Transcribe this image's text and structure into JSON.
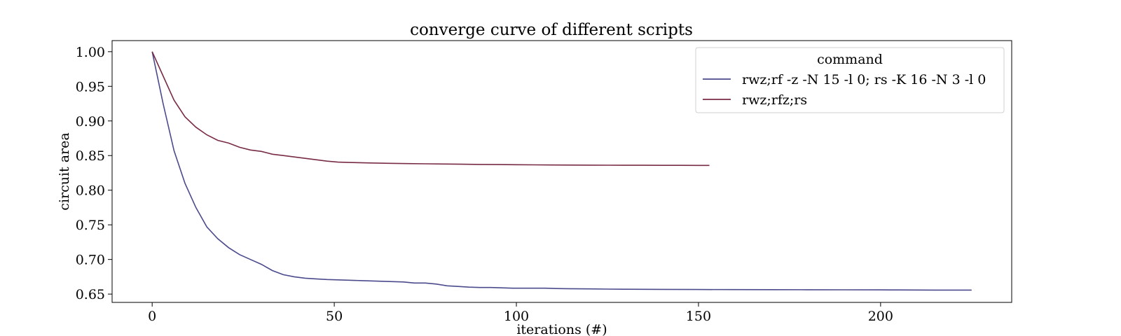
{
  "chart_data": {
    "type": "line",
    "title": "converge curve of different scripts",
    "xlabel": "iterations (#)",
    "ylabel": "circuit area",
    "xlim": [
      -11,
      236
    ],
    "ylim": [
      0.638,
      1.016
    ],
    "xticks": [
      0,
      50,
      100,
      150,
      200
    ],
    "xtick_labels": [
      "0",
      "50",
      "100",
      "150",
      "200"
    ],
    "yticks": [
      0.65,
      0.7,
      0.75,
      0.8,
      0.85,
      0.9,
      0.95,
      1.0
    ],
    "ytick_labels": [
      "0.65",
      "0.70",
      "0.75",
      "0.80",
      "0.85",
      "0.90",
      "0.95",
      "1.00"
    ],
    "grid": false,
    "legend": {
      "title": "command",
      "placement": "top-right"
    },
    "series": [
      {
        "name": "rwz;rf -z -N 15 -l 0; rs -K 16 -N 3 -l 0",
        "color": "#4b4a8c",
        "x": [
          0,
          3,
          6,
          9,
          12,
          15,
          18,
          21,
          24,
          27,
          30,
          33,
          36,
          39,
          42,
          45,
          48,
          51,
          54,
          57,
          60,
          63,
          66,
          69,
          72,
          75,
          78,
          81,
          84,
          87,
          90,
          93,
          96,
          99,
          102,
          105,
          108,
          111,
          114,
          117,
          120,
          125,
          130,
          140,
          150,
          160,
          170,
          180,
          190,
          200,
          205,
          210,
          215,
          220,
          225
        ],
        "y": [
          1.0,
          0.925,
          0.857,
          0.81,
          0.775,
          0.747,
          0.73,
          0.717,
          0.707,
          0.7,
          0.693,
          0.684,
          0.678,
          0.675,
          0.673,
          0.672,
          0.671,
          0.6705,
          0.67,
          0.6695,
          0.669,
          0.6685,
          0.668,
          0.6675,
          0.666,
          0.666,
          0.6645,
          0.662,
          0.661,
          0.66,
          0.6595,
          0.6595,
          0.659,
          0.6585,
          0.6585,
          0.6585,
          0.6585,
          0.658,
          0.6578,
          0.6576,
          0.6575,
          0.6572,
          0.657,
          0.6568,
          0.6566,
          0.6565,
          0.6564,
          0.6563,
          0.6562,
          0.6561,
          0.656,
          0.6559,
          0.6558,
          0.6558,
          0.6558
        ]
      },
      {
        "name": "rwz;rfz;rs",
        "color": "#782c44",
        "x": [
          0,
          3,
          6,
          9,
          12,
          15,
          18,
          21,
          24,
          27,
          30,
          33,
          36,
          39,
          42,
          45,
          48,
          51,
          54,
          57,
          60,
          65,
          70,
          75,
          80,
          85,
          90,
          95,
          100,
          105,
          110,
          115,
          120,
          125,
          130,
          135,
          140,
          145,
          150,
          153
        ],
        "y": [
          1.0,
          0.965,
          0.93,
          0.906,
          0.891,
          0.88,
          0.872,
          0.868,
          0.862,
          0.858,
          0.856,
          0.852,
          0.85,
          0.848,
          0.846,
          0.844,
          0.842,
          0.8405,
          0.84,
          0.8397,
          0.8393,
          0.8388,
          0.8384,
          0.8381,
          0.8378,
          0.8375,
          0.8372,
          0.837,
          0.8368,
          0.8366,
          0.8364,
          0.8363,
          0.8362,
          0.8361,
          0.836,
          0.836,
          0.8359,
          0.8359,
          0.8358,
          0.8358
        ]
      }
    ]
  }
}
